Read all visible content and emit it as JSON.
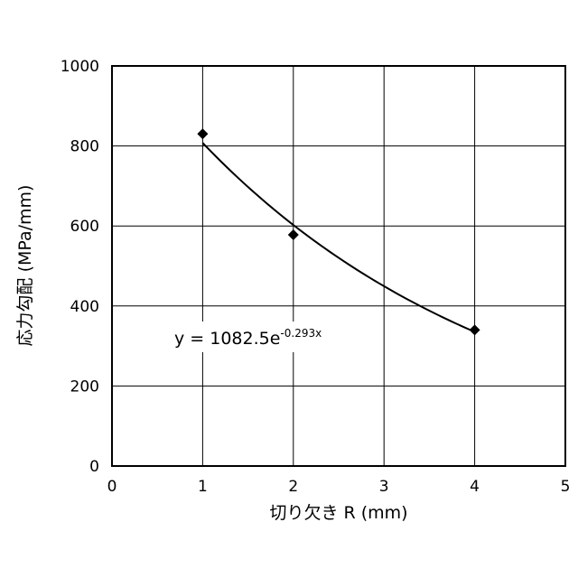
{
  "chart_data": {
    "type": "scatter",
    "title": "",
    "xlabel": "切り欠き R (mm)",
    "ylabel": "応力勾配 (MPa/mm)",
    "xlim": [
      0,
      5
    ],
    "ylim": [
      0,
      1000
    ],
    "x_ticks": [
      "0",
      "1",
      "2",
      "3",
      "4",
      "5"
    ],
    "y_ticks": [
      "0",
      "200",
      "400",
      "600",
      "800",
      "1000"
    ],
    "grid": true,
    "legend": "none",
    "series": [
      {
        "marker": "diamond",
        "color": "#000000",
        "x": [
          1,
          2,
          4
        ],
        "y": [
          830,
          578,
          340
        ]
      }
    ],
    "trendline": {
      "type": "exponential",
      "a": 1082.5,
      "b": -0.293,
      "x_range": [
        1,
        4
      ],
      "color": "#000000",
      "equation_base": "y = 1082.5e",
      "equation_exponent": "-0.293x"
    }
  }
}
